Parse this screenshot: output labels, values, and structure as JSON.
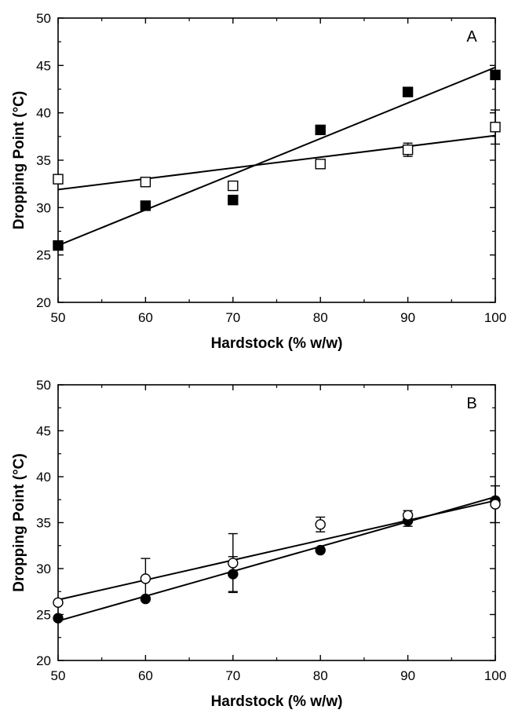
{
  "chart_data": [
    {
      "type": "scatter",
      "panel_label": "A",
      "xlabel": "Hardstock (% w/w)",
      "ylabel": "Dropping Point (°C)",
      "xlim": [
        50,
        100
      ],
      "ylim": [
        20,
        50
      ],
      "x_ticks": [
        50,
        60,
        70,
        80,
        90,
        100
      ],
      "y_ticks": [
        20,
        25,
        30,
        35,
        40,
        45,
        50
      ],
      "grid": false,
      "legend": "none",
      "series": [
        {
          "marker": "filled-square",
          "points": [
            {
              "x": 50,
              "y": 26.0
            },
            {
              "x": 60,
              "y": 30.2
            },
            {
              "x": 70,
              "y": 30.8
            },
            {
              "x": 80,
              "y": 38.2
            },
            {
              "x": 90,
              "y": 42.2
            },
            {
              "x": 100,
              "y": 44.0
            }
          ],
          "fit_line": [
            {
              "x": 50,
              "y": 26.0
            },
            {
              "x": 100,
              "y": 44.8
            }
          ]
        },
        {
          "marker": "open-square",
          "points": [
            {
              "x": 50,
              "y": 33.0
            },
            {
              "x": 60,
              "y": 32.7
            },
            {
              "x": 70,
              "y": 32.3
            },
            {
              "x": 80,
              "y": 34.6
            },
            {
              "x": 90,
              "y": 36.1,
              "err": 0.7
            },
            {
              "x": 100,
              "y": 38.5,
              "err": 1.8
            }
          ],
          "fit_line": [
            {
              "x": 50,
              "y": 31.9
            },
            {
              "x": 100,
              "y": 37.6
            }
          ]
        }
      ]
    },
    {
      "type": "scatter",
      "panel_label": "B",
      "xlabel": "Hardstock (% w/w)",
      "ylabel": "Dropping Point (°C)",
      "xlim": [
        50,
        100
      ],
      "ylim": [
        20,
        50
      ],
      "x_ticks": [
        50,
        60,
        70,
        80,
        90,
        100
      ],
      "y_ticks": [
        20,
        25,
        30,
        35,
        40,
        45,
        50
      ],
      "grid": false,
      "legend": "none",
      "series": [
        {
          "marker": "filled-circle",
          "points": [
            {
              "x": 50,
              "y": 24.6
            },
            {
              "x": 60,
              "y": 26.7
            },
            {
              "x": 70,
              "y": 29.4,
              "err": 1.9
            },
            {
              "x": 80,
              "y": 32.0
            },
            {
              "x": 90,
              "y": 35.2,
              "err": 0.6
            },
            {
              "x": 100,
              "y": 37.4
            }
          ],
          "fit_line": [
            {
              "x": 50,
              "y": 24.3
            },
            {
              "x": 100,
              "y": 37.8
            }
          ]
        },
        {
          "marker": "open-circle",
          "points": [
            {
              "x": 50,
              "y": 26.3
            },
            {
              "x": 60,
              "y": 28.9,
              "err": 2.2
            },
            {
              "x": 70,
              "y": 30.6,
              "err": 3.2
            },
            {
              "x": 80,
              "y": 34.8,
              "err": 0.8
            },
            {
              "x": 90,
              "y": 35.8,
              "err": 0.5
            },
            {
              "x": 100,
              "y": 37.0,
              "err": 2.0
            }
          ],
          "fit_line": [
            {
              "x": 50,
              "y": 26.6
            },
            {
              "x": 100,
              "y": 37.4
            }
          ]
        }
      ]
    }
  ]
}
